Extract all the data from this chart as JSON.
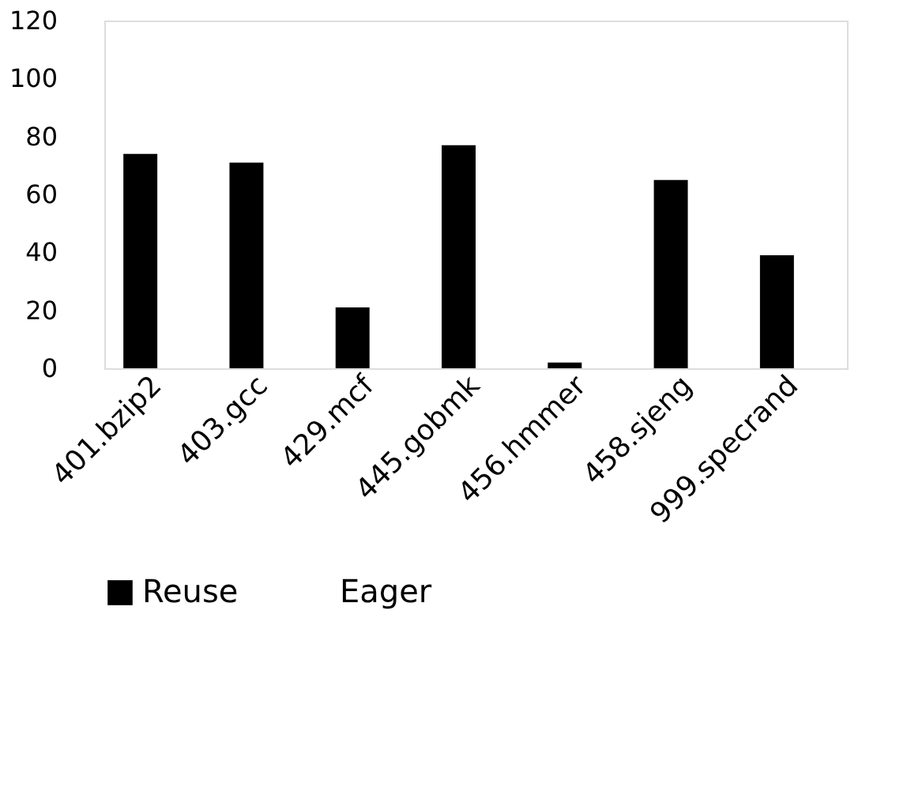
{
  "chart_data": {
    "type": "bar",
    "categories": [
      "401.bzip2",
      "403.gcc",
      "429.mcf",
      "445.gobmk",
      "456.hmmer",
      "458.sjeng",
      "999.specrand"
    ],
    "series": [
      {
        "name": "Reuse",
        "color": "#000000",
        "values": [
          74,
          71,
          21,
          77,
          2,
          65,
          39
        ]
      },
      {
        "name": "Eager",
        "values": [
          null,
          null,
          null,
          null,
          null,
          null,
          null
        ]
      }
    ],
    "ylim": [
      0,
      120
    ],
    "yticks": [
      0,
      20,
      40,
      60,
      80,
      100,
      120
    ],
    "grid": false,
    "legend": "bottom"
  }
}
